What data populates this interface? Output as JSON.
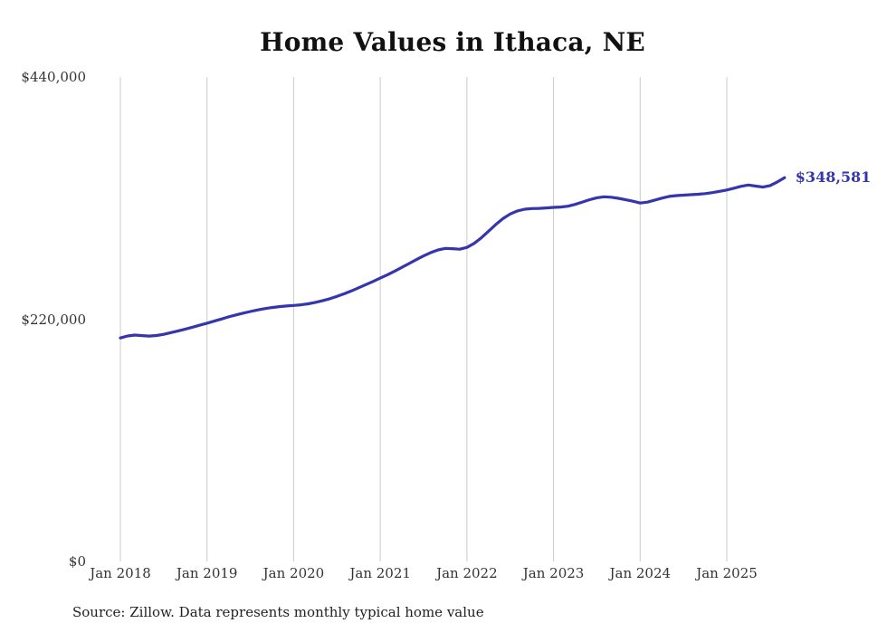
{
  "title": "Home Values in Ithaca, NE",
  "source_note": "Source: Zillow. Data represents monthly typical home value",
  "colors": {
    "line": "#3535ae",
    "grid": "#cccccc",
    "text": "#333333",
    "title_text": "#111111"
  },
  "chart_data": {
    "type": "line",
    "title": "Home Values in Ithaca, NE",
    "xlabel": "",
    "ylabel": "",
    "x_unit": "month",
    "x_range": [
      "Jan 2018",
      "Sep 2025"
    ],
    "x_tick_labels": [
      "Jan 2018",
      "Jan 2019",
      "Jan 2020",
      "Jan 2021",
      "Jan 2022",
      "Jan 2023",
      "Jan 2024",
      "Jan 2025"
    ],
    "y_ticks": [
      {
        "value": 0,
        "label": "$0"
      },
      {
        "value": 220000,
        "label": "$220,000"
      },
      {
        "value": 440000,
        "label": "$440,000"
      }
    ],
    "ylim": [
      0,
      440000
    ],
    "grid": "vertical-only",
    "legend": "none",
    "last_value_label": "$348,581",
    "last_value": 348581,
    "values": [
      203000,
      204800,
      205600,
      205100,
      204700,
      205200,
      206300,
      207800,
      209400,
      211000,
      212800,
      214600,
      216400,
      218300,
      220200,
      222100,
      223900,
      225500,
      227000,
      228400,
      229600,
      230600,
      231400,
      232000,
      232500,
      233100,
      234000,
      235300,
      236800,
      238600,
      240700,
      243100,
      245700,
      248500,
      251400,
      254300,
      257300,
      260400,
      263700,
      267100,
      270600,
      274100,
      277500,
      280500,
      282900,
      284300,
      284100,
      283600,
      285200,
      288800,
      293900,
      299900,
      306000,
      311400,
      315600,
      318400,
      319900,
      320500,
      320700,
      321100,
      321600,
      321900,
      322600,
      324300,
      326400,
      328600,
      330300,
      331200,
      330800,
      329800,
      328500,
      327200,
      325500,
      326300,
      328100,
      330000,
      331500,
      332300,
      332700,
      333100,
      333500,
      334100,
      335000,
      336100,
      337400,
      339000,
      340700,
      341900,
      340900,
      340000,
      341400,
      344700,
      348581
    ]
  }
}
